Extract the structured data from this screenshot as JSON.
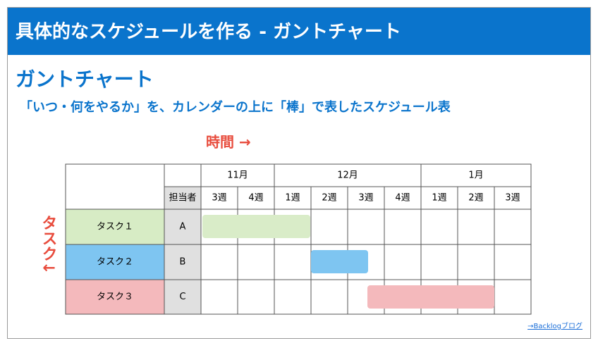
{
  "header": {
    "title": "具体的なスケジュールを作る - ガントチャート"
  },
  "heading": "ガントチャート",
  "subtitle": "「いつ・何をやるか」を、カレンダーの上に「棒」で表したスケジュール表",
  "time_label": "時間 →",
  "task_label": "タスク↓",
  "table": {
    "months": [
      "11月",
      "12月",
      "1月"
    ],
    "assignee_header": "担当者",
    "weeks": [
      "3週",
      "4週",
      "1週",
      "2週",
      "3週",
      "4週",
      "1週",
      "2週",
      "3週"
    ],
    "rows": [
      {
        "task": "タスク１",
        "assignee": "A"
      },
      {
        "task": "タスク２",
        "assignee": "B"
      },
      {
        "task": "タスク３",
        "assignee": "C"
      }
    ]
  },
  "link": "→Backlogブログ"
}
